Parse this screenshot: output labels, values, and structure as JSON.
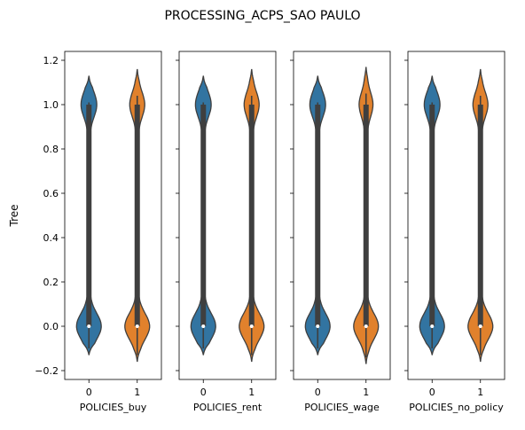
{
  "chart_data": {
    "type": "violin",
    "title": "PROCESSING_ACPS_SAO PAULO",
    "ylabel": "Tree",
    "ylim": [
      -0.24,
      1.24
    ],
    "yticks": [
      -0.2,
      0.0,
      0.2,
      0.4,
      0.6,
      0.8,
      1.0,
      1.2
    ],
    "ytick_labels": [
      "−0.2",
      "0.0",
      "0.2",
      "0.4",
      "0.6",
      "0.8",
      "1.0",
      "1.2"
    ],
    "categories": [
      "0",
      "1"
    ],
    "colors": {
      "0": "#3274a1",
      "1": "#e1812c",
      "edge": "#3f3f3f",
      "box": "#3f3f3f"
    },
    "panels": [
      {
        "xlabel": "POLICIES_buy",
        "violins": [
          {
            "category": "0",
            "min": -0.13,
            "max": 1.13,
            "low_mode_halfwidth": 0.58,
            "high_mode_halfwidth": 0.35,
            "median": 0.0,
            "q1": 0.0,
            "q3": 1.0
          },
          {
            "category": "1",
            "min": -0.16,
            "max": 1.16,
            "low_mode_halfwidth": 0.58,
            "high_mode_halfwidth": 0.33,
            "median": 0.0,
            "q1": 0.0,
            "q3": 1.0
          }
        ]
      },
      {
        "xlabel": "POLICIES_rent",
        "violins": [
          {
            "category": "0",
            "min": -0.13,
            "max": 1.13,
            "low_mode_halfwidth": 0.58,
            "high_mode_halfwidth": 0.35,
            "median": 0.0,
            "q1": 0.0,
            "q3": 1.0
          },
          {
            "category": "1",
            "min": -0.16,
            "max": 1.16,
            "low_mode_halfwidth": 0.58,
            "high_mode_halfwidth": 0.33,
            "median": 0.0,
            "q1": 0.0,
            "q3": 1.0
          }
        ]
      },
      {
        "xlabel": "POLICIES_wage",
        "violins": [
          {
            "category": "0",
            "min": -0.13,
            "max": 1.13,
            "low_mode_halfwidth": 0.58,
            "high_mode_halfwidth": 0.35,
            "median": 0.0,
            "q1": 0.0,
            "q3": 1.0
          },
          {
            "category": "1",
            "min": -0.17,
            "max": 1.17,
            "low_mode_halfwidth": 0.58,
            "high_mode_halfwidth": 0.3,
            "median": 0.0,
            "q1": 0.0,
            "q3": 1.0
          }
        ]
      },
      {
        "xlabel": "POLICIES_no_policy",
        "violins": [
          {
            "category": "0",
            "min": -0.13,
            "max": 1.13,
            "low_mode_halfwidth": 0.58,
            "high_mode_halfwidth": 0.35,
            "median": 0.0,
            "q1": 0.0,
            "q3": 1.0
          },
          {
            "category": "1",
            "min": -0.16,
            "max": 1.16,
            "low_mode_halfwidth": 0.58,
            "high_mode_halfwidth": 0.33,
            "median": 0.0,
            "q1": 0.0,
            "q3": 1.0
          }
        ]
      }
    ]
  }
}
